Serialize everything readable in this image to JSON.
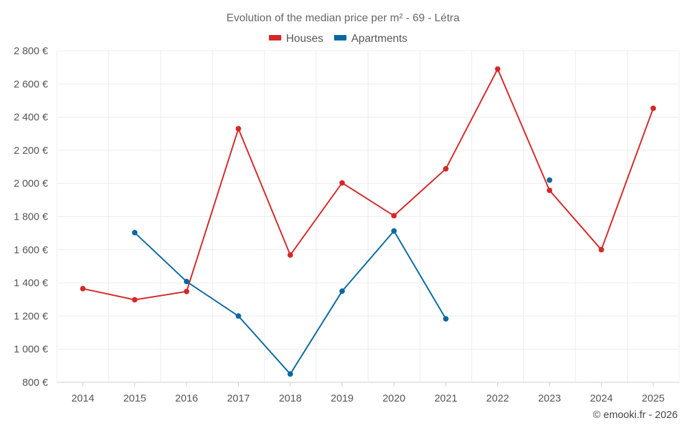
{
  "chart_data": {
    "type": "line",
    "title": "Evolution of the median price per m² - 69 - Létra",
    "categories": [
      "2014",
      "2015",
      "2016",
      "2017",
      "2018",
      "2019",
      "2020",
      "2021",
      "2022",
      "2023",
      "2024",
      "2025"
    ],
    "y_tick_labels": [
      "800 €",
      "1 000 €",
      "1 200 €",
      "1 400 €",
      "1 600 €",
      "1 800 €",
      "2 000 €",
      "2 200 €",
      "2 400 €",
      "2 600 €",
      "2 800 €"
    ],
    "ylim": [
      800,
      2800
    ],
    "y_step": 200,
    "grid": true,
    "legend_position": "top-center",
    "series": [
      {
        "name": "Houses",
        "color": "#d62728",
        "values": [
          1365,
          1298,
          1348,
          2330,
          1568,
          2003,
          1805,
          2088,
          2690,
          1958,
          1600,
          2453
        ]
      },
      {
        "name": "Apartments",
        "color": "#0a68a0",
        "values": [
          null,
          1703,
          1408,
          1200,
          850,
          1350,
          1713,
          1183,
          null,
          2020,
          null,
          null
        ]
      }
    ],
    "credit": "© emooki.fr - 2026"
  }
}
